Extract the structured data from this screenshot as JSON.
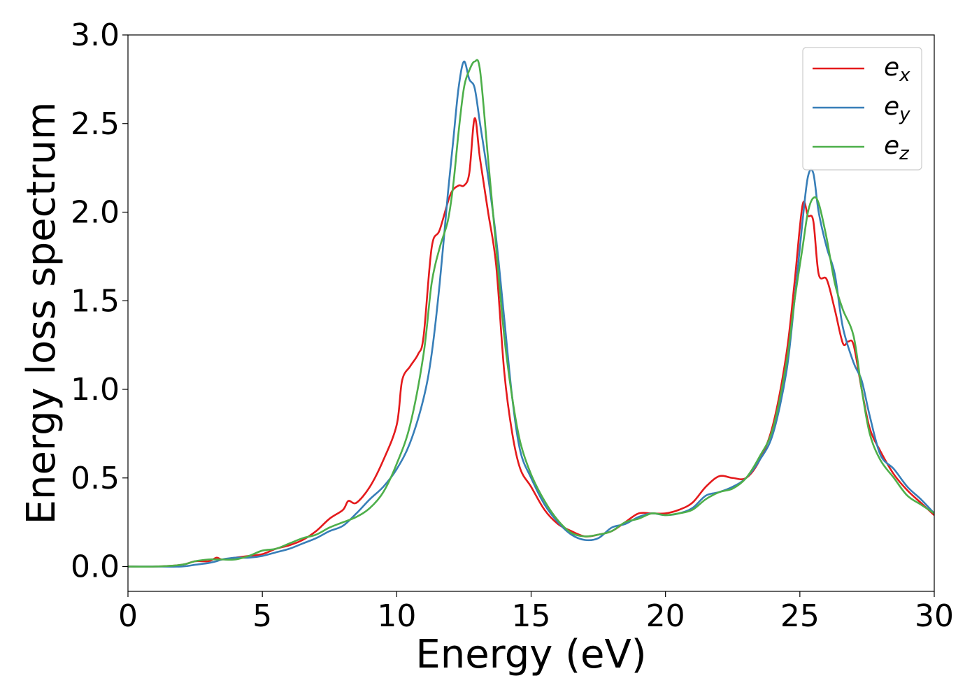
{
  "chart_data": {
    "type": "line",
    "xlabel": "Energy (eV)",
    "ylabel": "Energy loss spectrum",
    "xlim": [
      0,
      30
    ],
    "ylim": [
      -0.14,
      3.0
    ],
    "xticks": [
      0,
      5,
      10,
      15,
      20,
      25,
      30
    ],
    "xtick_labels": [
      "0",
      "5",
      "10",
      "15",
      "20",
      "25",
      "30"
    ],
    "yticks": [
      0.0,
      0.5,
      1.0,
      1.5,
      2.0,
      2.5,
      3.0
    ],
    "ytick_labels": [
      "0.0",
      "0.5",
      "1.0",
      "1.5",
      "2.0",
      "2.5",
      "3.0"
    ],
    "grid": false,
    "legend_position": "top-right",
    "series": [
      {
        "name": "e_x",
        "label_base": "e",
        "label_sub": "x",
        "color": "#e41a1c",
        "x": [
          0,
          1,
          2,
          2.5,
          3,
          3.3,
          3.5,
          4,
          4.5,
          5,
          5.5,
          6,
          6.5,
          7,
          7.5,
          8,
          8.2,
          8.5,
          9,
          9.5,
          10,
          10.2,
          10.5,
          10.8,
          11,
          11.3,
          11.6,
          12,
          12.3,
          12.5,
          12.7,
          12.9,
          13.1,
          13.4,
          13.7,
          14,
          14.3,
          14.6,
          15,
          15.5,
          16,
          16.5,
          17,
          17.5,
          18,
          18.5,
          19,
          19.5,
          20,
          20.5,
          21,
          21.5,
          22,
          22.5,
          23,
          23.5,
          24,
          24.5,
          24.8,
          25.1,
          25.3,
          25.5,
          25.7,
          26,
          26.3,
          26.6,
          26.8,
          27,
          27.3,
          27.6,
          28,
          28.5,
          29,
          29.5,
          30
        ],
        "y": [
          0.0,
          0.0,
          0.01,
          0.03,
          0.03,
          0.05,
          0.04,
          0.05,
          0.06,
          0.07,
          0.1,
          0.12,
          0.15,
          0.2,
          0.27,
          0.32,
          0.37,
          0.36,
          0.45,
          0.6,
          0.8,
          1.05,
          1.13,
          1.2,
          1.3,
          1.8,
          1.9,
          2.1,
          2.15,
          2.15,
          2.22,
          2.53,
          2.3,
          2.0,
          1.7,
          1.1,
          0.75,
          0.55,
          0.45,
          0.32,
          0.24,
          0.2,
          0.17,
          0.18,
          0.2,
          0.25,
          0.3,
          0.3,
          0.3,
          0.32,
          0.36,
          0.45,
          0.51,
          0.5,
          0.5,
          0.6,
          0.8,
          1.2,
          1.6,
          2.04,
          1.98,
          1.95,
          1.65,
          1.62,
          1.45,
          1.26,
          1.27,
          1.25,
          1.0,
          0.78,
          0.65,
          0.52,
          0.43,
          0.36,
          0.29
        ]
      },
      {
        "name": "e_y",
        "label_base": "e",
        "label_sub": "y",
        "color": "#377eb8",
        "x": [
          0,
          1,
          2,
          2.5,
          3,
          3.3,
          3.5,
          4,
          4.5,
          5,
          5.5,
          6,
          6.5,
          7,
          7.5,
          8,
          8.5,
          9,
          9.5,
          10,
          10.5,
          11,
          11.3,
          11.6,
          11.9,
          12.1,
          12.3,
          12.5,
          12.7,
          12.9,
          13.1,
          13.4,
          13.7,
          14,
          14.3,
          14.6,
          15,
          15.5,
          16,
          16.5,
          17,
          17.5,
          18,
          18.5,
          19,
          19.5,
          20,
          20.5,
          21,
          21.5,
          22,
          22.5,
          23,
          23.5,
          24,
          24.5,
          24.8,
          25.1,
          25.3,
          25.5,
          25.7,
          26,
          26.3,
          26.6,
          27,
          27.3,
          27.6,
          28,
          28.5,
          29,
          29.5,
          30
        ],
        "y": [
          0.0,
          0.0,
          0.0,
          0.01,
          0.02,
          0.03,
          0.04,
          0.05,
          0.05,
          0.06,
          0.08,
          0.1,
          0.13,
          0.16,
          0.2,
          0.23,
          0.3,
          0.38,
          0.45,
          0.55,
          0.7,
          0.95,
          1.2,
          1.6,
          2.1,
          2.4,
          2.7,
          2.85,
          2.75,
          2.7,
          2.5,
          2.2,
          1.85,
          1.4,
          0.95,
          0.65,
          0.5,
          0.35,
          0.25,
          0.18,
          0.15,
          0.16,
          0.22,
          0.24,
          0.28,
          0.3,
          0.29,
          0.3,
          0.33,
          0.4,
          0.42,
          0.45,
          0.5,
          0.6,
          0.75,
          1.1,
          1.5,
          1.95,
          2.2,
          2.22,
          2.0,
          1.8,
          1.65,
          1.35,
          1.15,
          1.05,
          0.85,
          0.63,
          0.55,
          0.45,
          0.38,
          0.3
        ],
        "note_points_omitted": ""
      },
      {
        "name": "e_z",
        "label_base": "e",
        "label_sub": "z",
        "color": "#4daf4a",
        "x": [
          0,
          1,
          2,
          2.5,
          3,
          3.3,
          3.5,
          4,
          4.5,
          5,
          5.5,
          6,
          6.5,
          7,
          7.5,
          8,
          8.5,
          9,
          9.5,
          10,
          10.5,
          11,
          11.3,
          11.6,
          11.9,
          12.1,
          12.3,
          12.5,
          12.7,
          12.9,
          13.1,
          13.4,
          13.7,
          14,
          14.3,
          14.6,
          15,
          15.5,
          16,
          16.5,
          17,
          17.5,
          18,
          18.5,
          19,
          19.5,
          20,
          20.5,
          21,
          21.5,
          22,
          22.5,
          23,
          23.5,
          24,
          24.5,
          24.8,
          25.1,
          25.3,
          25.5,
          25.7,
          26,
          26.3,
          26.6,
          27,
          27.3,
          27.6,
          28,
          28.5,
          29,
          29.5,
          30
        ],
        "y": [
          0.0,
          0.0,
          0.01,
          0.03,
          0.04,
          0.04,
          0.04,
          0.04,
          0.06,
          0.09,
          0.1,
          0.13,
          0.16,
          0.18,
          0.22,
          0.25,
          0.28,
          0.33,
          0.42,
          0.58,
          0.8,
          1.2,
          1.6,
          1.8,
          1.95,
          2.15,
          2.45,
          2.7,
          2.8,
          2.85,
          2.8,
          2.3,
          1.8,
          1.3,
          0.95,
          0.7,
          0.52,
          0.37,
          0.26,
          0.19,
          0.17,
          0.18,
          0.2,
          0.25,
          0.27,
          0.3,
          0.29,
          0.3,
          0.32,
          0.38,
          0.42,
          0.44,
          0.5,
          0.62,
          0.78,
          1.15,
          1.5,
          1.8,
          2.0,
          2.08,
          2.05,
          1.85,
          1.6,
          1.45,
          1.3,
          1.0,
          0.75,
          0.6,
          0.5,
          0.4,
          0.35,
          0.3
        ]
      }
    ]
  }
}
